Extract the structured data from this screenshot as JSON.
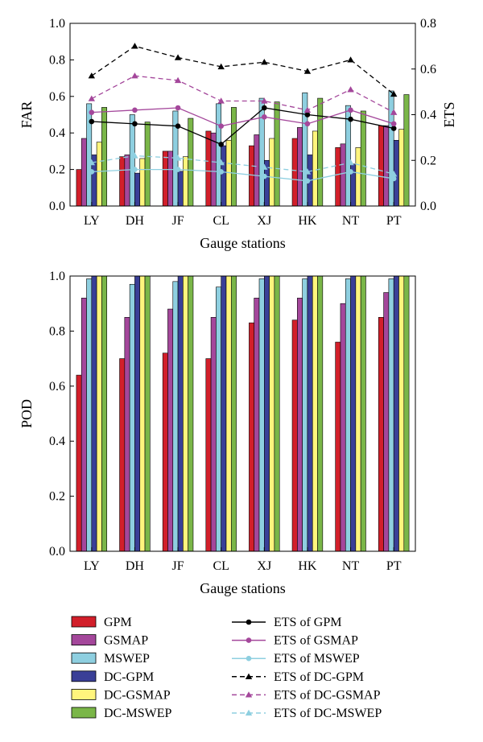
{
  "chart_data": [
    {
      "type": "bar",
      "categories": [
        "LY",
        "DH",
        "JF",
        "CL",
        "XJ",
        "HK",
        "NT",
        "PT"
      ],
      "xlabel": "Gauge stations",
      "ylabel": "FAR",
      "ylim": [
        0,
        1.0
      ],
      "yticks": [
        "0.0",
        "0.2",
        "0.4",
        "0.6",
        "0.8",
        "1.0"
      ],
      "y2label": "ETS",
      "y2lim": [
        0,
        0.8
      ],
      "y2ticks": [
        "0.0",
        "0.2",
        "0.4",
        "0.6",
        "0.8"
      ],
      "series": [
        {
          "name": "GPM",
          "color": "#d21f2a",
          "values": [
            0.2,
            0.27,
            0.3,
            0.41,
            0.33,
            0.37,
            0.32,
            0.44
          ]
        },
        {
          "name": "GSMAP",
          "color": "#a4479b",
          "values": [
            0.37,
            0.28,
            0.3,
            0.4,
            0.39,
            0.43,
            0.34,
            0.44
          ]
        },
        {
          "name": "MSWEP",
          "color": "#8ecfe0",
          "values": [
            0.56,
            0.5,
            0.52,
            0.56,
            0.59,
            0.62,
            0.55,
            0.63
          ]
        },
        {
          "name": "DC-GPM",
          "color": "#3a3f97",
          "values": [
            0.28,
            0.18,
            0.19,
            0.33,
            0.25,
            0.28,
            0.23,
            0.36
          ]
        },
        {
          "name": "DC-GSMAP",
          "color": "#fff57d",
          "values": [
            0.35,
            0.26,
            0.27,
            0.36,
            0.37,
            0.41,
            0.32,
            0.42
          ]
        },
        {
          "name": "DC-MSWEP",
          "color": "#7ab648",
          "values": [
            0.54,
            0.46,
            0.48,
            0.54,
            0.57,
            0.59,
            0.52,
            0.61
          ]
        }
      ],
      "line_series": [
        {
          "name": "ETS of GPM",
          "color": "#000000",
          "dashed": false,
          "marker": "circle",
          "values": [
            0.37,
            0.36,
            0.35,
            0.27,
            0.43,
            0.4,
            0.38,
            0.34
          ]
        },
        {
          "name": "ETS of GSMAP",
          "color": "#a4479b",
          "dashed": false,
          "marker": "circle",
          "values": [
            0.41,
            0.42,
            0.43,
            0.35,
            0.39,
            0.36,
            0.42,
            0.36
          ]
        },
        {
          "name": "ETS of MSWEP",
          "color": "#8ecfe0",
          "dashed": false,
          "marker": "circle",
          "values": [
            0.15,
            0.16,
            0.16,
            0.15,
            0.13,
            0.11,
            0.15,
            0.12
          ]
        },
        {
          "name": "ETS of DC-GPM",
          "color": "#000000",
          "dashed": true,
          "marker": "triangle",
          "values": [
            0.57,
            0.7,
            0.65,
            0.61,
            0.63,
            0.59,
            0.64,
            0.49
          ]
        },
        {
          "name": "ETS of DC-GSMAP",
          "color": "#a4479b",
          "dashed": true,
          "marker": "triangle",
          "values": [
            0.47,
            0.57,
            0.55,
            0.46,
            0.46,
            0.42,
            0.51,
            0.41
          ]
        },
        {
          "name": "ETS of DC-MSWEP",
          "color": "#8ecfe0",
          "dashed": true,
          "marker": "triangle",
          "values": [
            0.19,
            0.22,
            0.21,
            0.19,
            0.17,
            0.15,
            0.19,
            0.14
          ]
        }
      ]
    },
    {
      "type": "bar",
      "categories": [
        "LY",
        "DH",
        "JF",
        "CL",
        "XJ",
        "HK",
        "NT",
        "PT"
      ],
      "xlabel": "Gauge stations",
      "ylabel": "POD",
      "ylim": [
        0,
        1.0
      ],
      "yticks": [
        "0.0",
        "0.2",
        "0.4",
        "0.6",
        "0.8",
        "1.0"
      ],
      "series": [
        {
          "name": "GPM",
          "color": "#d21f2a",
          "values": [
            0.64,
            0.7,
            0.72,
            0.7,
            0.83,
            0.84,
            0.76,
            0.85
          ]
        },
        {
          "name": "GSMAP",
          "color": "#a4479b",
          "values": [
            0.92,
            0.85,
            0.88,
            0.85,
            0.92,
            0.92,
            0.9,
            0.94
          ]
        },
        {
          "name": "MSWEP",
          "color": "#8ecfe0",
          "values": [
            0.99,
            0.97,
            0.98,
            0.96,
            0.99,
            0.99,
            0.99,
            0.99
          ]
        },
        {
          "name": "DC-GPM",
          "color": "#3a3f97",
          "values": [
            1.0,
            1.0,
            1.0,
            1.0,
            1.0,
            1.0,
            1.0,
            1.0
          ]
        },
        {
          "name": "DC-GSMAP",
          "color": "#fff57d",
          "values": [
            1.0,
            1.0,
            1.0,
            1.0,
            1.0,
            1.0,
            1.0,
            1.0
          ]
        },
        {
          "name": "DC-MSWEP",
          "color": "#7ab648",
          "values": [
            1.0,
            1.0,
            1.0,
            1.0,
            1.0,
            1.0,
            1.0,
            1.0
          ]
        }
      ]
    }
  ],
  "legend": {
    "bars": [
      {
        "label": "GPM",
        "color": "#d21f2a"
      },
      {
        "label": "GSMAP",
        "color": "#a4479b"
      },
      {
        "label": "MSWEP",
        "color": "#8ecfe0"
      },
      {
        "label": "DC-GPM",
        "color": "#3a3f97"
      },
      {
        "label": "DC-GSMAP",
        "color": "#fff57d"
      },
      {
        "label": "DC-MSWEP",
        "color": "#7ab648"
      }
    ],
    "lines": [
      {
        "label": "ETS of GPM",
        "color": "#000000",
        "dashed": false,
        "marker": "circle"
      },
      {
        "label": "ETS of GSMAP",
        "color": "#a4479b",
        "dashed": false,
        "marker": "circle"
      },
      {
        "label": "ETS of MSWEP",
        "color": "#8ecfe0",
        "dashed": false,
        "marker": "circle"
      },
      {
        "label": "ETS of DC-GPM",
        "color": "#000000",
        "dashed": true,
        "marker": "triangle"
      },
      {
        "label": "ETS of DC-GSMAP",
        "color": "#a4479b",
        "dashed": true,
        "marker": "triangle"
      },
      {
        "label": "ETS of DC-MSWEP",
        "color": "#8ecfe0",
        "dashed": true,
        "marker": "triangle"
      }
    ]
  }
}
